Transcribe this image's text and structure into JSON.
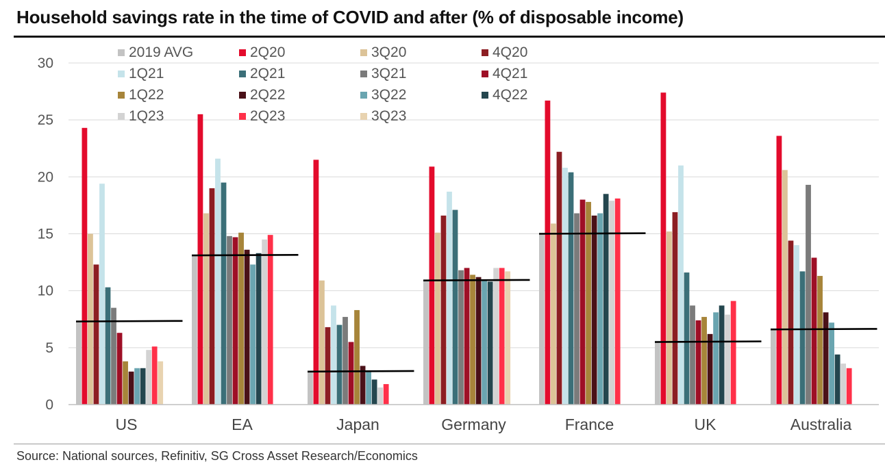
{
  "title": "Household savings rate in the time of COVID and after (% of disposable income)",
  "source": "Source: National sources, Refinitiv, SG Cross Asset Research/Economics",
  "chart_data": {
    "type": "bar",
    "title": "Household savings rate in the time of COVID and after (% of disposable income)",
    "xlabel": "",
    "ylabel": "",
    "ylim": [
      0,
      30
    ],
    "yticks": [
      "0",
      "5",
      "10",
      "15",
      "20",
      "25",
      "30"
    ],
    "grid": "horizontal",
    "legend_position": "top-left",
    "categories": [
      "US",
      "EA",
      "Japan",
      "Germany",
      "France",
      "UK",
      "Australia"
    ],
    "series": [
      {
        "name": "2019 AVG",
        "color": "#c3c3c3",
        "values": [
          7.3,
          13.1,
          2.9,
          10.9,
          15.0,
          5.5,
          6.6
        ]
      },
      {
        "name": "2Q20",
        "color": "#e30b2c",
        "values": [
          24.3,
          25.5,
          21.5,
          20.9,
          26.7,
          27.4,
          23.6
        ]
      },
      {
        "name": "3Q20",
        "color": "#dcc398",
        "values": [
          15.0,
          16.8,
          10.9,
          15.1,
          15.9,
          15.2,
          20.6
        ]
      },
      {
        "name": "4Q20",
        "color": "#8c1e23",
        "values": [
          12.3,
          19.0,
          6.8,
          16.6,
          22.2,
          16.9,
          14.4
        ]
      },
      {
        "name": "1Q21",
        "color": "#c5e3ea",
        "values": [
          19.4,
          21.6,
          8.7,
          18.7,
          20.8,
          21.0,
          14.0
        ]
      },
      {
        "name": "2Q21",
        "color": "#3b6f78",
        "values": [
          10.3,
          19.5,
          7.0,
          17.1,
          20.4,
          11.6,
          11.7
        ]
      },
      {
        "name": "3Q21",
        "color": "#7b7b7b",
        "values": [
          8.5,
          14.8,
          7.7,
          11.8,
          16.8,
          8.7,
          19.3
        ]
      },
      {
        "name": "4Q21",
        "color": "#9e0f26",
        "values": [
          6.3,
          14.7,
          5.5,
          12.0,
          18.0,
          7.4,
          12.9
        ]
      },
      {
        "name": "1Q22",
        "color": "#a7853a",
        "values": [
          3.8,
          15.1,
          8.3,
          11.4,
          17.8,
          7.7,
          11.3
        ]
      },
      {
        "name": "2Q22",
        "color": "#4a1118",
        "values": [
          2.9,
          13.6,
          3.4,
          11.2,
          16.6,
          6.2,
          8.1
        ]
      },
      {
        "name": "3Q22",
        "color": "#6aa5b0",
        "values": [
          3.2,
          12.3,
          2.9,
          10.9,
          16.8,
          8.1,
          7.2
        ]
      },
      {
        "name": "4Q22",
        "color": "#24464e",
        "values": [
          3.2,
          13.3,
          2.2,
          10.8,
          18.5,
          8.7,
          4.4
        ]
      },
      {
        "name": "1Q23",
        "color": "#d3d3d3",
        "values": [
          4.8,
          14.5,
          1.5,
          12.0,
          17.9,
          7.9,
          3.6
        ]
      },
      {
        "name": "2Q23",
        "color": "#ff3049",
        "values": [
          5.1,
          14.9,
          1.8,
          12.0,
          18.1,
          9.1,
          3.2
        ]
      },
      {
        "name": "3Q23",
        "color": "#e8d3b0",
        "values": [
          3.8,
          null,
          null,
          11.7,
          null,
          null,
          null
        ]
      }
    ],
    "reference_line": {
      "label": "2019 AVG",
      "color": "#000000",
      "values": [
        7.3,
        13.1,
        2.9,
        10.9,
        15.0,
        5.5,
        6.6
      ]
    }
  }
}
